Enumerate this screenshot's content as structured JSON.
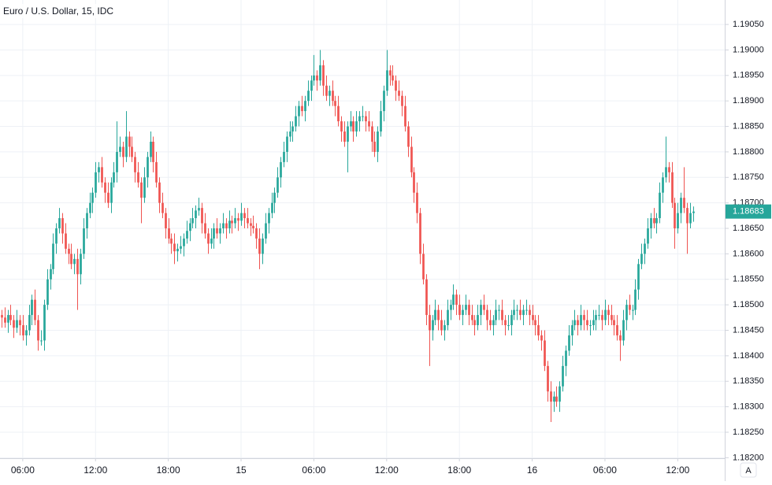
{
  "chart_data": {
    "type": "candlestick",
    "title": "Euro / U.S. Dollar, 15, IDC",
    "up_color": "#26a69a",
    "down_color": "#ef5350",
    "grid": true,
    "xlim": [
      0,
      239
    ],
    "ylim": [
      1.18199,
      1.19098
    ],
    "xticks": [
      {
        "value": 7,
        "label": "06:00"
      },
      {
        "value": 31,
        "label": "12:00"
      },
      {
        "value": 55,
        "label": "18:00"
      },
      {
        "value": 79,
        "label": "15"
      },
      {
        "value": 103,
        "label": "06:00"
      },
      {
        "value": 127,
        "label": "12:00"
      },
      {
        "value": 151,
        "label": "18:00"
      },
      {
        "value": 175,
        "label": "16"
      },
      {
        "value": 199,
        "label": "06:00"
      },
      {
        "value": 223,
        "label": "12:00"
      }
    ],
    "yticks": [
      {
        "value": 1.182,
        "label": "1.18200"
      },
      {
        "value": 1.1825,
        "label": "1.18250"
      },
      {
        "value": 1.183,
        "label": "1.18300"
      },
      {
        "value": 1.1835,
        "label": "1.18350"
      },
      {
        "value": 1.184,
        "label": "1.18400"
      },
      {
        "value": 1.1845,
        "label": "1.18450"
      },
      {
        "value": 1.185,
        "label": "1.18500"
      },
      {
        "value": 1.1855,
        "label": "1.18550"
      },
      {
        "value": 1.186,
        "label": "1.18600"
      },
      {
        "value": 1.1865,
        "label": "1.18650"
      },
      {
        "value": 1.187,
        "label": "1.18700"
      },
      {
        "value": 1.1875,
        "label": "1.18750"
      },
      {
        "value": 1.188,
        "label": "1.18800"
      },
      {
        "value": 1.1885,
        "label": "1.18850"
      },
      {
        "value": 1.189,
        "label": "1.18900"
      },
      {
        "value": 1.1895,
        "label": "1.18950"
      },
      {
        "value": 1.19,
        "label": "1.19000"
      },
      {
        "value": 1.1905,
        "label": "1.19050"
      }
    ],
    "auto_button": "A",
    "open": [
      1.1848,
      1.18475,
      1.18465,
      1.1848,
      1.1847,
      1.18455,
      1.1847,
      1.1846,
      1.1844,
      1.1845,
      1.1848,
      1.1851,
      1.1847,
      1.1843,
      1.1843,
      1.185,
      1.1855,
      1.1857,
      1.1862,
      1.1865,
      1.1867,
      1.1864,
      1.1861,
      1.186,
      1.1858,
      1.1859,
      1.1856,
      1.186,
      1.1865,
      1.1868,
      1.187,
      1.1872,
      1.1876,
      1.1877,
      1.1874,
      1.1872,
      1.187,
      1.1874,
      1.1876,
      1.188,
      1.1881,
      1.1879,
      1.1883,
      1.1881,
      1.1879,
      1.1876,
      1.1874,
      1.1871,
      1.1875,
      1.1879,
      1.1882,
      1.1878,
      1.1874,
      1.187,
      1.1868,
      1.1865,
      1.1863,
      1.1862,
      1.18605,
      1.1861,
      1.18615,
      1.1863,
      1.18645,
      1.1866,
      1.1867,
      1.18685,
      1.1869,
      1.1866,
      1.1864,
      1.1862,
      1.1863,
      1.1865,
      1.1864,
      1.1865,
      1.1866,
      1.1865,
      1.18665,
      1.1866,
      1.1867,
      1.18665,
      1.1868,
      1.1867,
      1.1866,
      1.18655,
      1.1865,
      1.1863,
      1.186,
      1.1863,
      1.1866,
      1.1868,
      1.187,
      1.1872,
      1.1875,
      1.1878,
      1.188,
      1.1883,
      1.1884,
      1.1885,
      1.1887,
      1.1889,
      1.1888,
      1.189,
      1.1892,
      1.1894,
      1.1895,
      1.1894,
      1.1897,
      1.1893,
      1.1891,
      1.1892,
      1.189,
      1.1889,
      1.1886,
      1.1884,
      1.1882,
      1.1885,
      1.1886,
      1.1884,
      1.1886,
      1.1887,
      1.1887,
      1.1886,
      1.1885,
      1.1882,
      1.188,
      1.1884,
      1.1888,
      1.1892,
      1.1896,
      1.1895,
      1.1894,
      1.1892,
      1.1891,
      1.1889,
      1.1885,
      1.1881,
      1.1876,
      1.1872,
      1.1868,
      1.186,
      1.1855,
      1.1848,
      1.1845,
      1.1847,
      1.1849,
      1.1847,
      1.1845,
      1.1846,
      1.1849,
      1.185,
      1.1852,
      1.185,
      1.1848,
      1.1849,
      1.185,
      1.1848,
      1.1847,
      1.1846,
      1.1848,
      1.185,
      1.1849,
      1.1847,
      1.1846,
      1.1847,
      1.1849,
      1.1849,
      1.1847,
      1.1846,
      1.1846,
      1.1848,
      1.1849,
      1.1849,
      1.1848,
      1.1849,
      1.1849,
      1.1848,
      1.1847,
      1.1846,
      1.1844,
      1.1843,
      1.1838,
      1.1833,
      1.1831,
      1.1832,
      1.1831,
      1.1834,
      1.1838,
      1.1841,
      1.1844,
      1.1846,
      1.1847,
      1.1846,
      1.1848,
      1.1847,
      1.1846,
      1.1846,
      1.1847,
      1.1848,
      1.1848,
      1.1847,
      1.1849,
      1.1848,
      1.1847,
      1.1846,
      1.1844,
      1.1843,
      1.1847,
      1.185,
      1.1849,
      1.1849,
      1.1853,
      1.1858,
      1.186,
      1.1862,
      1.1865,
      1.1867,
      1.1866,
      1.1867,
      1.1872,
      1.1875,
      1.1877,
      1.1876,
      1.187,
      1.1865,
      1.1868,
      1.1871,
      1.1869,
      1.1866,
      1.1868
    ],
    "high": [
      1.1849,
      1.18495,
      1.1849,
      1.185,
      1.1848,
      1.1849,
      1.1848,
      1.1848,
      1.1846,
      1.185,
      1.1852,
      1.1853,
      1.1848,
      1.1845,
      1.1851,
      1.1857,
      1.1858,
      1.1864,
      1.1866,
      1.1869,
      1.1868,
      1.1866,
      1.1862,
      1.1862,
      1.186,
      1.1861,
      1.1861,
      1.1867,
      1.1869,
      1.1872,
      1.1873,
      1.1878,
      1.1878,
      1.1879,
      1.1875,
      1.1874,
      1.1875,
      1.1878,
      1.1886,
      1.1883,
      1.1882,
      1.1888,
      1.1884,
      1.1883,
      1.188,
      1.1878,
      1.1875,
      1.1877,
      1.188,
      1.1884,
      1.1883,
      1.188,
      1.1875,
      1.1872,
      1.1869,
      1.1867,
      1.1864,
      1.1864,
      1.1862,
      1.18635,
      1.1864,
      1.18665,
      1.1867,
      1.1869,
      1.18695,
      1.1871,
      1.187,
      1.1868,
      1.1865,
      1.1865,
      1.1866,
      1.1867,
      1.1866,
      1.1868,
      1.1867,
      1.18685,
      1.18675,
      1.1869,
      1.1868,
      1.187,
      1.1869,
      1.1869,
      1.1867,
      1.18675,
      1.1866,
      1.1865,
      1.1864,
      1.1868,
      1.1869,
      1.1872,
      1.1873,
      1.1877,
      1.1879,
      1.1882,
      1.1884,
      1.1886,
      1.1886,
      1.1889,
      1.189,
      1.1891,
      1.1891,
      1.1894,
      1.1895,
      1.1899,
      1.1896,
      1.19,
      1.1898,
      1.1895,
      1.1893,
      1.1894,
      1.1891,
      1.1891,
      1.1887,
      1.1886,
      1.1886,
      1.1888,
      1.1887,
      1.1888,
      1.1888,
      1.1889,
      1.1888,
      1.1888,
      1.1886,
      1.1884,
      1.1885,
      1.189,
      1.1893,
      1.19,
      1.1897,
      1.1897,
      1.1895,
      1.1894,
      1.1892,
      1.1891,
      1.1886,
      1.1883,
      1.1877,
      1.1874,
      1.1869,
      1.1862,
      1.1856,
      1.185,
      1.1848,
      1.1851,
      1.185,
      1.1849,
      1.1847,
      1.1851,
      1.1851,
      1.1854,
      1.1853,
      1.1852,
      1.185,
      1.1852,
      1.1851,
      1.185,
      1.1848,
      1.185,
      1.1851,
      1.1852,
      1.185,
      1.1849,
      1.1848,
      1.1851,
      1.185,
      1.1851,
      1.1848,
      1.1848,
      1.1849,
      1.1851,
      1.185,
      1.1851,
      1.185,
      1.1851,
      1.185,
      1.185,
      1.1848,
      1.1848,
      1.1845,
      1.1845,
      1.1839,
      1.1835,
      1.1833,
      1.1834,
      1.1835,
      1.184,
      1.1842,
      1.1846,
      1.1847,
      1.1849,
      1.1848,
      1.185,
      1.1849,
      1.1849,
      1.1847,
      1.1849,
      1.1849,
      1.185,
      1.1849,
      1.1851,
      1.185,
      1.185,
      1.1848,
      1.1848,
      1.1845,
      1.1849,
      1.1851,
      1.1852,
      1.185,
      1.1855,
      1.1859,
      1.1862,
      1.1863,
      1.1867,
      1.1868,
      1.1869,
      1.1868,
      1.1874,
      1.1876,
      1.1883,
      1.1878,
      1.1878,
      1.1871,
      1.187,
      1.1872,
      1.1877,
      1.187,
      1.187,
      1.18693
    ],
    "low": [
      1.18455,
      1.18455,
      1.18445,
      1.1846,
      1.18435,
      1.18445,
      1.1844,
      1.1843,
      1.1842,
      1.1844,
      1.1846,
      1.1846,
      1.1841,
      1.1842,
      1.1841,
      1.1849,
      1.1853,
      1.1856,
      1.186,
      1.1864,
      1.1862,
      1.186,
      1.1858,
      1.1857,
      1.1856,
      1.1849,
      1.1854,
      1.1859,
      1.1863,
      1.1867,
      1.1868,
      1.1871,
      1.1874,
      1.1873,
      1.187,
      1.1869,
      1.1868,
      1.1873,
      1.1874,
      1.1879,
      1.1877,
      1.1878,
      1.1879,
      1.1878,
      1.1874,
      1.1873,
      1.1866,
      1.187,
      1.1873,
      1.1878,
      1.1876,
      1.1873,
      1.1868,
      1.1867,
      1.1863,
      1.1862,
      1.186,
      1.1858,
      1.18585,
      1.186,
      1.18595,
      1.1862,
      1.18625,
      1.1865,
      1.1865,
      1.18675,
      1.1864,
      1.1863,
      1.186,
      1.1861,
      1.1861,
      1.1863,
      1.1862,
      1.1864,
      1.1863,
      1.1864,
      1.1864,
      1.1865,
      1.18645,
      1.18655,
      1.1865,
      1.1865,
      1.18635,
      1.1864,
      1.1861,
      1.1857,
      1.1858,
      1.1862,
      1.1864,
      1.1867,
      1.1868,
      1.1871,
      1.1873,
      1.1877,
      1.1878,
      1.1882,
      1.1882,
      1.1884,
      1.1885,
      1.1887,
      1.1886,
      1.1889,
      1.189,
      1.1893,
      1.1892,
      1.1893,
      1.1891,
      1.189,
      1.1889,
      1.1889,
      1.1887,
      1.1885,
      1.1882,
      1.1881,
      1.1876,
      1.1884,
      1.1882,
      1.1883,
      1.1884,
      1.1886,
      1.1884,
      1.1884,
      1.188,
      1.1879,
      1.1878,
      1.1883,
      1.1886,
      1.1891,
      1.1893,
      1.1893,
      1.189,
      1.189,
      1.1887,
      1.1884,
      1.1879,
      1.1875,
      1.187,
      1.1866,
      1.1858,
      1.1854,
      1.1846,
      1.1838,
      1.1843,
      1.1846,
      1.1845,
      1.1844,
      1.1843,
      1.1845,
      1.1847,
      1.1849,
      1.1848,
      1.1847,
      1.1846,
      1.1848,
      1.1846,
      1.1846,
      1.1844,
      1.1845,
      1.1846,
      1.1848,
      1.1845,
      1.1845,
      1.1844,
      1.1846,
      1.1847,
      1.1846,
      1.1844,
      1.1845,
      1.1844,
      1.1847,
      1.1847,
      1.1847,
      1.1846,
      1.1848,
      1.1846,
      1.1846,
      1.1844,
      1.1843,
      1.1841,
      1.1837,
      1.1831,
      1.1827,
      1.1829,
      1.183,
      1.1829,
      1.1833,
      1.1836,
      1.184,
      1.1842,
      1.1845,
      1.1844,
      1.1845,
      1.1845,
      1.1845,
      1.1844,
      1.1845,
      1.1845,
      1.1847,
      1.1845,
      1.1846,
      1.1846,
      1.1846,
      1.1844,
      1.1843,
      1.1839,
      1.1842,
      1.1845,
      1.1848,
      1.1847,
      1.1848,
      1.1851,
      1.1857,
      1.1858,
      1.1861,
      1.1863,
      1.1865,
      1.1864,
      1.1866,
      1.187,
      1.1874,
      1.1874,
      1.1869,
      1.1861,
      1.1864,
      1.1866,
      1.1868,
      1.186,
      1.1865,
      1.18663
    ],
    "close": [
      1.18475,
      1.18465,
      1.1848,
      1.1847,
      1.18455,
      1.1847,
      1.1846,
      1.1844,
      1.1845,
      1.1848,
      1.1851,
      1.1847,
      1.1843,
      1.1843,
      1.185,
      1.1855,
      1.1857,
      1.1862,
      1.1865,
      1.1867,
      1.1864,
      1.1861,
      1.186,
      1.1858,
      1.1859,
      1.1856,
      1.186,
      1.1865,
      1.1868,
      1.187,
      1.1872,
      1.1876,
      1.1877,
      1.1874,
      1.1872,
      1.187,
      1.1874,
      1.1876,
      1.188,
      1.1881,
      1.1879,
      1.1883,
      1.1881,
      1.1879,
      1.1876,
      1.1874,
      1.1871,
      1.1875,
      1.1879,
      1.1882,
      1.1878,
      1.1874,
      1.187,
      1.1868,
      1.1865,
      1.1863,
      1.1862,
      1.18605,
      1.1861,
      1.18615,
      1.1863,
      1.18645,
      1.1866,
      1.1867,
      1.18685,
      1.1869,
      1.1866,
      1.1864,
      1.1862,
      1.1863,
      1.1865,
      1.1864,
      1.1865,
      1.1866,
      1.1865,
      1.18665,
      1.1866,
      1.1867,
      1.18665,
      1.1868,
      1.1867,
      1.1866,
      1.18655,
      1.1865,
      1.1863,
      1.186,
      1.1863,
      1.1866,
      1.1868,
      1.187,
      1.1872,
      1.1875,
      1.1878,
      1.188,
      1.1883,
      1.1884,
      1.1885,
      1.1887,
      1.1889,
      1.1888,
      1.189,
      1.1892,
      1.1894,
      1.1895,
      1.1894,
      1.1897,
      1.1893,
      1.1891,
      1.1892,
      1.189,
      1.1889,
      1.1886,
      1.1884,
      1.1882,
      1.1885,
      1.1886,
      1.1884,
      1.1886,
      1.1887,
      1.1887,
      1.1886,
      1.1885,
      1.1882,
      1.188,
      1.1884,
      1.1888,
      1.1892,
      1.1896,
      1.1895,
      1.1894,
      1.1892,
      1.1891,
      1.1889,
      1.1885,
      1.1881,
      1.1876,
      1.1872,
      1.1868,
      1.186,
      1.1855,
      1.1848,
      1.1845,
      1.1847,
      1.1849,
      1.1847,
      1.1845,
      1.1846,
      1.1849,
      1.185,
      1.1852,
      1.185,
      1.1848,
      1.1849,
      1.185,
      1.1848,
      1.1847,
      1.1846,
      1.1848,
      1.185,
      1.1849,
      1.1847,
      1.1846,
      1.1847,
      1.1849,
      1.1849,
      1.1847,
      1.1846,
      1.1846,
      1.1848,
      1.1849,
      1.1849,
      1.1848,
      1.1849,
      1.1849,
      1.1848,
      1.1847,
      1.1846,
      1.1844,
      1.1843,
      1.1838,
      1.1833,
      1.1831,
      1.1832,
      1.1831,
      1.1834,
      1.1838,
      1.1841,
      1.1844,
      1.1846,
      1.1847,
      1.1846,
      1.1848,
      1.1847,
      1.1846,
      1.1846,
      1.1847,
      1.1848,
      1.1848,
      1.1847,
      1.1849,
      1.1848,
      1.1847,
      1.1846,
      1.1844,
      1.1843,
      1.1847,
      1.185,
      1.1849,
      1.1849,
      1.1853,
      1.1858,
      1.186,
      1.1862,
      1.1865,
      1.1867,
      1.1866,
      1.1867,
      1.1872,
      1.1875,
      1.1877,
      1.1876,
      1.187,
      1.1865,
      1.1868,
      1.1871,
      1.1869,
      1.1866,
      1.1868,
      1.18683
    ]
  }
}
